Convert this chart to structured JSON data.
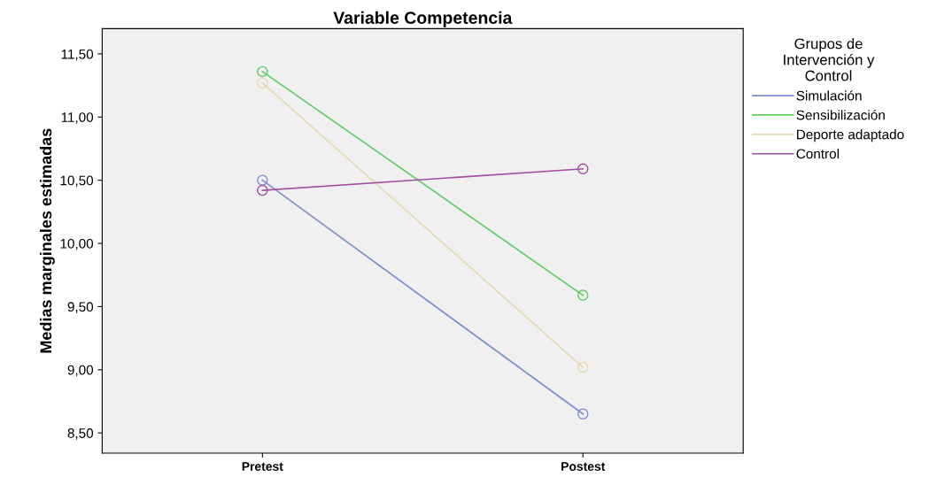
{
  "chart_data": {
    "type": "line",
    "title": "Variable Competencia",
    "ylabel": "Medias marginales estimadas",
    "legend_title": "Grupos de\nIntervención y\nControl",
    "categories": [
      "Pretest",
      "Postest"
    ],
    "series": [
      {
        "name": "Simulación",
        "color": "#7f8fd0",
        "values": [
          10.5,
          8.65
        ]
      },
      {
        "name": "Sensibilización",
        "color": "#5fcc5f",
        "values": [
          11.36,
          9.59
        ]
      },
      {
        "name": "Deporte adaptado",
        "color": "#e6dab0",
        "values": [
          11.27,
          9.02
        ]
      },
      {
        "name": "Control",
        "color": "#a04fa0",
        "values": [
          10.42,
          10.59
        ]
      }
    ],
    "ylim": [
      8.34,
      11.7
    ],
    "yticks": [
      {
        "value": 8.5,
        "label": "8,50"
      },
      {
        "value": 9.0,
        "label": "9,00"
      },
      {
        "value": 9.5,
        "label": "9,50"
      },
      {
        "value": 10.0,
        "label": "10,00"
      },
      {
        "value": 10.5,
        "label": "10,50"
      },
      {
        "value": 11.0,
        "label": "11,00"
      },
      {
        "value": 11.5,
        "label": "11,50"
      }
    ],
    "marker": "circle",
    "line_style": "solid",
    "legend": "top right",
    "grid": false
  }
}
